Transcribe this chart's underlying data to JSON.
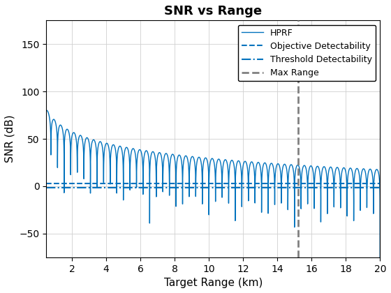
{
  "title": "SNR vs Range",
  "xlabel": "Target Range (km)",
  "ylabel": "SNR (dB)",
  "xlim": [
    0.5,
    20
  ],
  "ylim": [
    -75,
    175
  ],
  "yticks": [
    -50,
    0,
    50,
    100,
    150
  ],
  "xticks": [
    2,
    4,
    6,
    8,
    10,
    12,
    14,
    16,
    18,
    20
  ],
  "hprf_color": "#0072BD",
  "objective_color": "#0072BD",
  "threshold_color": "#0072BD",
  "maxrange_color": "#808080",
  "objective_value": 3.0,
  "threshold_value": -1.5,
  "max_range_value": 15.2,
  "r_start": 0.5,
  "r_end": 20.0,
  "n_points": 8000,
  "snr_peak_db": 80,
  "range_ref": 0.55,
  "osc_freq": 2.6,
  "legend_loc": "upper right",
  "title_fontsize": 13,
  "label_fontsize": 11,
  "tick_fontsize": 10,
  "background_color": "#ffffff",
  "grid_color": "#d0d0d0"
}
